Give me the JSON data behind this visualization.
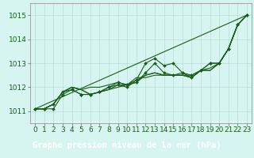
{
  "background_color": "#cceee8",
  "plot_bg_color": "#d6f5f0",
  "grid_color": "#b8ddd8",
  "line_color": "#1a5c1a",
  "marker_color": "#1a5c1a",
  "xlabel": "Graphe pression niveau de la mer (hPa)",
  "xlabel_fontsize": 7.5,
  "tick_fontsize": 6.5,
  "ylabel_ticks": [
    1011,
    1012,
    1013,
    1014,
    1015
  ],
  "xlim": [
    -0.5,
    23.5
  ],
  "ylim": [
    1010.5,
    1015.5
  ],
  "xlabel_bg": "#1a5c1a",
  "xlabel_fg": "#ffffff",
  "series": [
    [
      1011.1,
      1011.1,
      1011.1,
      1011.7,
      1011.9,
      1011.7,
      1011.7,
      1011.8,
      1012.0,
      1012.2,
      1012.1,
      1012.2,
      1012.6,
      1013.0,
      1012.6,
      1012.5,
      1012.6,
      1012.5,
      1012.7,
      1013.0,
      1013.0,
      1013.6,
      1014.6,
      1015.0
    ],
    [
      1011.1,
      1011.1,
      1011.3,
      1011.8,
      1012.0,
      1011.9,
      1011.7,
      1011.8,
      1011.9,
      1012.1,
      1012.1,
      1012.3,
      1012.5,
      1012.6,
      1012.5,
      1012.5,
      1012.5,
      1012.4,
      1012.7,
      1012.7,
      1013.0,
      1013.6,
      1014.6,
      1015.0
    ],
    [
      1011.1,
      1011.1,
      1011.3,
      1011.8,
      1011.9,
      1011.7,
      1011.7,
      1011.8,
      1012.0,
      1012.1,
      1012.0,
      1012.3,
      1013.0,
      1013.2,
      1012.9,
      1013.0,
      1012.6,
      1012.4,
      1012.7,
      1013.0,
      1013.0,
      1013.6,
      1014.6,
      1015.0
    ],
    [
      1011.1,
      1011.1,
      1011.3,
      1011.8,
      1012.0,
      1011.9,
      1011.7,
      1011.8,
      1011.9,
      1012.0,
      1012.1,
      1012.2,
      1012.5,
      1012.6,
      1012.5,
      1012.5,
      1012.5,
      1012.4,
      1012.7,
      1012.7,
      1013.0,
      1013.6,
      1014.6,
      1015.0
    ],
    [
      1011.1,
      1011.1,
      1011.3,
      1011.8,
      1012.0,
      1011.9,
      1012.0,
      1012.0,
      1012.1,
      1012.2,
      1012.1,
      1012.4,
      1012.4,
      1012.5,
      1012.5,
      1012.5,
      1012.5,
      1012.5,
      1012.7,
      1012.8,
      1013.0,
      1013.6,
      1014.6,
      1015.0
    ]
  ],
  "has_markers": [
    true,
    false,
    true,
    false,
    false
  ],
  "straight_line": [
    1011.1,
    1015.0
  ]
}
